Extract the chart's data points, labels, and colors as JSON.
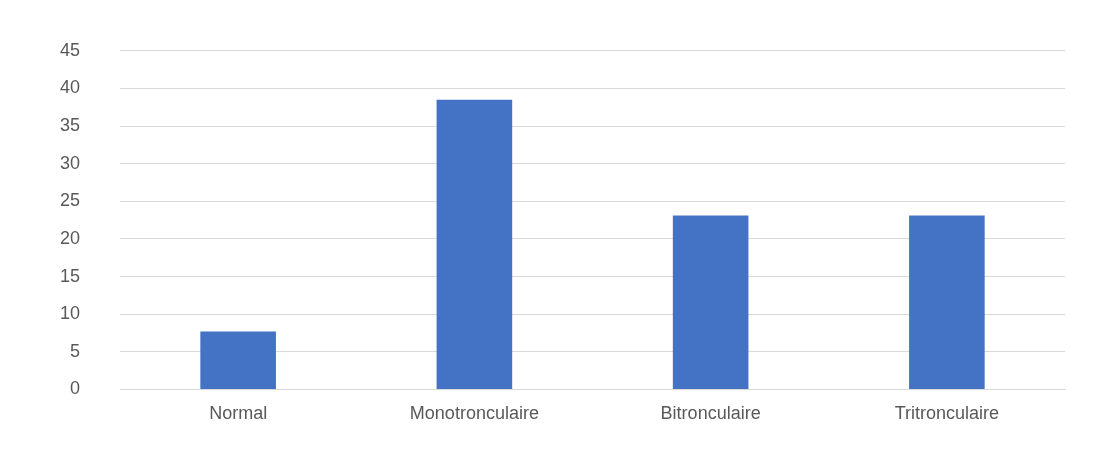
{
  "chart_data": {
    "type": "bar",
    "categories": [
      "Normal",
      "Monotronculaire",
      "Bitronculaire",
      "Tritronculaire"
    ],
    "values": [
      7.7,
      38.5,
      23.1,
      23.1
    ],
    "color": "#4472c4",
    "ylim": [
      0,
      45
    ],
    "yticks": [
      0,
      5,
      10,
      15,
      20,
      25,
      30,
      35,
      40,
      45
    ],
    "grid": "y",
    "legend": false
  }
}
